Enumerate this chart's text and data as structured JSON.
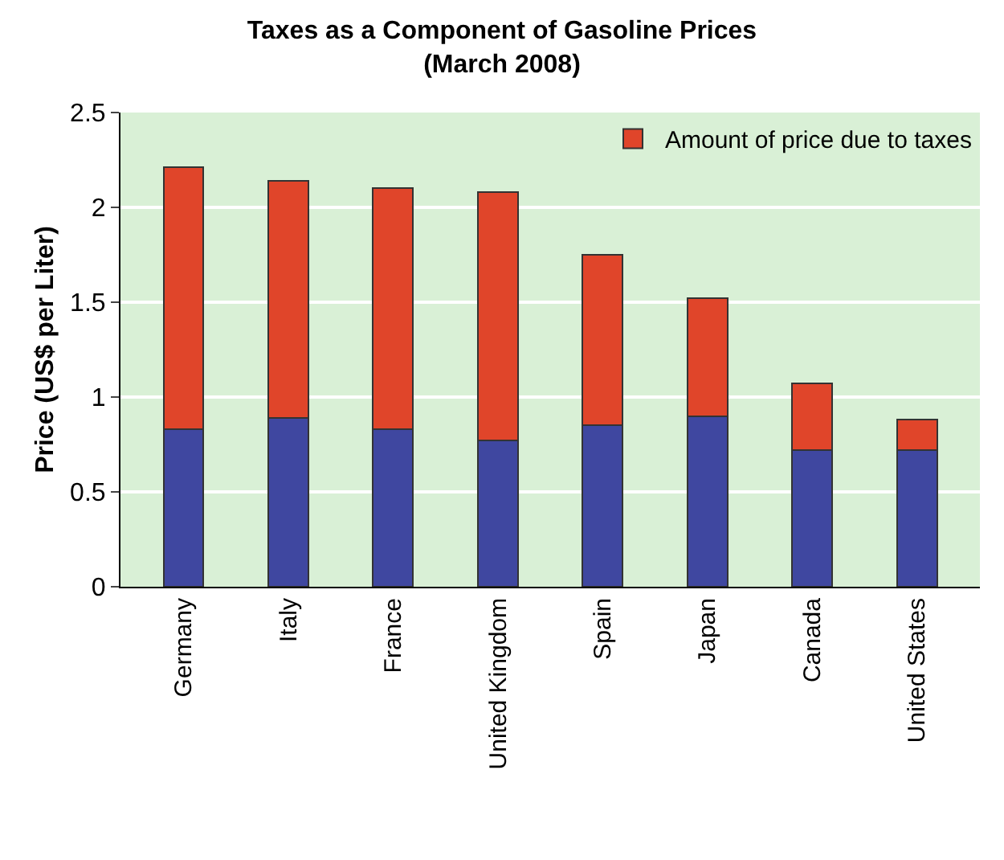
{
  "chart_data": {
    "type": "bar",
    "title": "Taxes as a Component of Gasoline Prices\n(March 2008)",
    "ylabel": "Price (US$ per Liter)",
    "categories": [
      "Germany",
      "Italy",
      "France",
      "United Kingdom",
      "Spain",
      "Japan",
      "Canada",
      "United States"
    ],
    "series": [
      {
        "color": "#3f47a0",
        "values": [
          0.83,
          0.89,
          0.83,
          0.77,
          0.85,
          0.9,
          0.72,
          0.72
        ]
      },
      {
        "name": "Amount of price due to taxes",
        "color": "#e0452a",
        "values": [
          1.38,
          1.25,
          1.27,
          1.31,
          0.9,
          0.62,
          0.35,
          0.16
        ]
      }
    ],
    "stacked": true,
    "ylim": [
      0,
      2.5
    ],
    "yticks": [
      0,
      0.5,
      1,
      1.5,
      2,
      2.5
    ],
    "grid": "y",
    "legend": "top right"
  }
}
